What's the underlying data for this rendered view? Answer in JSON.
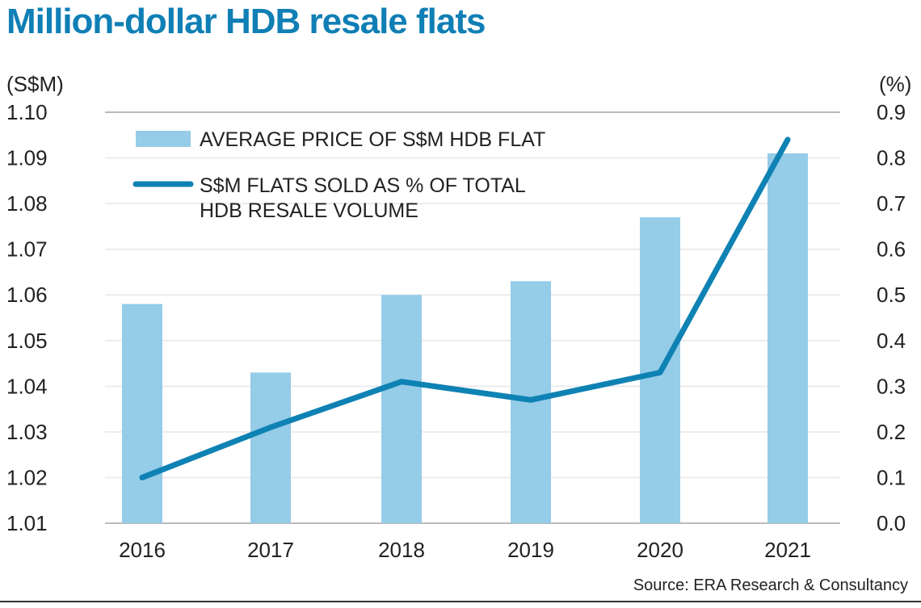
{
  "chart_data": {
    "type": "bar+line",
    "title": "Million-dollar HDB resale flats",
    "categories": [
      "2016",
      "2017",
      "2018",
      "2019",
      "2020",
      "2021"
    ],
    "series": [
      {
        "name": "AVERAGE PRICE OF S$M HDB FLAT",
        "type": "bar",
        "axis": "left",
        "color": "#95cce8",
        "values": [
          1.058,
          1.043,
          1.06,
          1.063,
          1.077,
          1.091
        ]
      },
      {
        "name_lines": [
          "S$M FLATS SOLD AS % OF TOTAL",
          "HDB RESALE VOLUME"
        ],
        "type": "line",
        "axis": "right",
        "color": "#0f82b4",
        "values": [
          0.1,
          0.21,
          0.31,
          0.27,
          0.33,
          0.84
        ]
      }
    ],
    "left_axis": {
      "label": "(S$M)",
      "range": [
        1.01,
        1.1
      ],
      "ticks": [
        "1.01",
        "1.02",
        "1.03",
        "1.04",
        "1.05",
        "1.06",
        "1.07",
        "1.08",
        "1.09",
        "1.10"
      ]
    },
    "right_axis": {
      "label": "(%)",
      "range": [
        0.0,
        0.9
      ],
      "ticks": [
        "0.0",
        "0.1",
        "0.2",
        "0.3",
        "0.4",
        "0.5",
        "0.6",
        "0.7",
        "0.8",
        "0.9"
      ]
    },
    "legend_placement": "top-left",
    "source": "Source: ERA Research & Consultancy"
  }
}
